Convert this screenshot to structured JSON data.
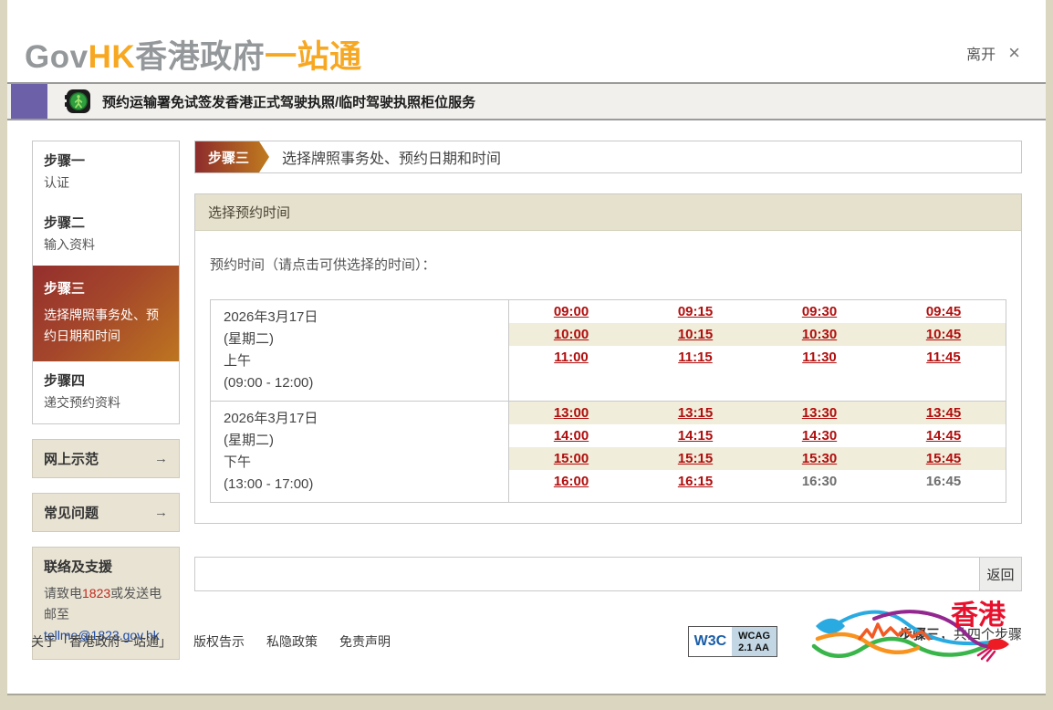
{
  "header": {
    "logo_gov": "Gov",
    "logo_hk": "HK",
    "logo_cn_gray": "香港政府",
    "logo_cn_orange": "一站通",
    "leave_label": "离开",
    "close_glyph": "×"
  },
  "banner": {
    "title": "预约运输署免试签发香港正式驾驶执照/临时驾驶执照柜位服务"
  },
  "sidebar": {
    "steps": [
      {
        "title": "步骤一",
        "subtitle": "认证",
        "active": false
      },
      {
        "title": "步骤二",
        "subtitle": "输入资料",
        "active": false
      },
      {
        "title": "步骤三",
        "subtitle": "选择牌照事务处、预约日期和时间",
        "active": true
      },
      {
        "title": "步骤四",
        "subtitle": "递交预约资料",
        "active": false
      }
    ],
    "links": [
      {
        "label": "网上示范",
        "arrow": "→"
      },
      {
        "label": "常见问题",
        "arrow": "→"
      }
    ],
    "contact": {
      "title": "联络及支援",
      "text_before": "请致电",
      "phone": "1823",
      "text_after": "或发送电邮至",
      "email": "tellme@1823.gov.hk"
    }
  },
  "main": {
    "step_badge": "步骤三",
    "step_title": "选择牌照事务处、预约日期和时间",
    "section_title": "选择预约时间",
    "instruction": "预约时间（请点击可供选择的时间）：",
    "slots": [
      {
        "date": "2026年3月17日",
        "weekday": "(星期二)",
        "period": "上午",
        "range": "(09:00 - 12:00)",
        "rows": [
          [
            {
              "time": "09:00",
              "available": true
            },
            {
              "time": "09:15",
              "available": true
            },
            {
              "time": "09:30",
              "available": true
            },
            {
              "time": "09:45",
              "available": true
            }
          ],
          [
            {
              "time": "10:00",
              "available": true
            },
            {
              "time": "10:15",
              "available": true
            },
            {
              "time": "10:30",
              "available": true
            },
            {
              "time": "10:45",
              "available": true
            }
          ],
          [
            {
              "time": "11:00",
              "available": true
            },
            {
              "time": "11:15",
              "available": true
            },
            {
              "time": "11:30",
              "available": true
            },
            {
              "time": "11:45",
              "available": true
            }
          ]
        ]
      },
      {
        "date": "2026年3月17日",
        "weekday": "(星期二)",
        "period": "下午",
        "range": "(13:00 - 17:00)",
        "rows": [
          [
            {
              "time": "13:00",
              "available": true
            },
            {
              "time": "13:15",
              "available": true
            },
            {
              "time": "13:30",
              "available": true
            },
            {
              "time": "13:45",
              "available": true
            }
          ],
          [
            {
              "time": "14:00",
              "available": true
            },
            {
              "time": "14:15",
              "available": true
            },
            {
              "time": "14:30",
              "available": true
            },
            {
              "time": "14:45",
              "available": true
            }
          ],
          [
            {
              "time": "15:00",
              "available": true
            },
            {
              "time": "15:15",
              "available": true
            },
            {
              "time": "15:30",
              "available": true
            },
            {
              "time": "15:45",
              "available": true
            }
          ],
          [
            {
              "time": "16:00",
              "available": true
            },
            {
              "time": "16:15",
              "available": true
            },
            {
              "time": "16:30",
              "available": false
            },
            {
              "time": "16:45",
              "available": false
            }
          ]
        ]
      }
    ],
    "back_label": "返回",
    "progress_bold": "步骤三",
    "progress_rest": "，共四个步骤"
  },
  "footer": {
    "links": [
      "关于「香港政府一站通」",
      "版权告示",
      "私隐政策",
      "免责声明"
    ],
    "wcag": {
      "w3c": "W3C",
      "line1": "WCAG",
      "line2": "2.1 AA"
    },
    "brand_text": "香港"
  },
  "colors": {
    "accent_orange": "#f7a823",
    "logo_gray": "#95989a",
    "banner_purple": "#6c60a8",
    "active_step_gradient_from": "#8e2c2c",
    "active_step_gradient_to": "#c07b1e",
    "timeslot_link_red": "#b00d0d",
    "timeslot_disabled_gray": "#6e6e6e",
    "stripe_beige": "#f0edda",
    "section_header_beige": "#e6e1cd",
    "email_blue": "#1b49a8",
    "phone_red": "#c0281c",
    "page_background": "#dad6c0"
  }
}
